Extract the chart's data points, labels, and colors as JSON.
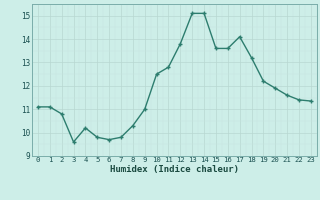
{
  "x": [
    0,
    1,
    2,
    3,
    4,
    5,
    6,
    7,
    8,
    9,
    10,
    11,
    12,
    13,
    14,
    15,
    16,
    17,
    18,
    19,
    20,
    21,
    22,
    23
  ],
  "y": [
    11.1,
    11.1,
    10.8,
    9.6,
    10.2,
    9.8,
    9.7,
    9.8,
    10.3,
    11.0,
    12.5,
    12.8,
    13.8,
    15.1,
    15.1,
    13.6,
    13.6,
    14.1,
    13.2,
    12.2,
    11.9,
    11.6,
    11.4,
    11.35
  ],
  "line_color": "#2d7d6e",
  "marker": "P",
  "marker_size": 2.5,
  "bg_color": "#cdeee8",
  "xlabel": "Humidex (Indice chaleur)",
  "ylabel": "",
  "ylim": [
    9,
    15.5
  ],
  "xlim": [
    -0.5,
    23.5
  ],
  "yticks": [
    9,
    10,
    11,
    12,
    13,
    14,
    15
  ],
  "xticks": [
    0,
    1,
    2,
    3,
    4,
    5,
    6,
    7,
    8,
    9,
    10,
    11,
    12,
    13,
    14,
    15,
    16,
    17,
    18,
    19,
    20,
    21,
    22,
    23
  ],
  "xlabel_fontsize": 6.5,
  "tick_fontsize": 6.0,
  "grid_major_color": "#b8d8d2",
  "grid_minor_color": "#c8e4df"
}
